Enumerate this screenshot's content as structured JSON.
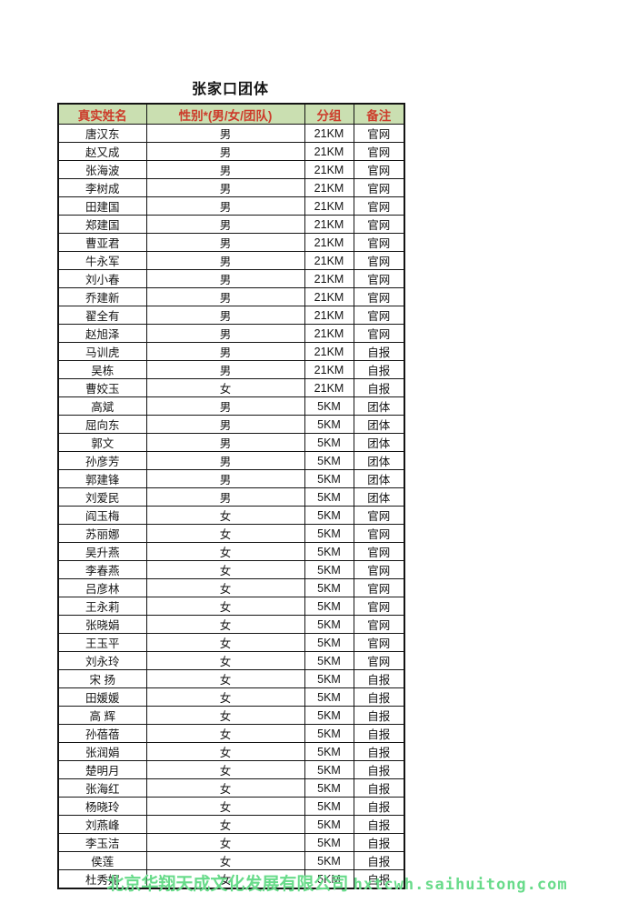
{
  "title": "张家口团体",
  "colors": {
    "header_bg": "#cadfb1",
    "header_text": "#cc3b2a",
    "footer_text": "#68db8a",
    "border": "#141414"
  },
  "table": {
    "columns": [
      "真实姓名",
      "性别*(男/女/团队)",
      "分组",
      "备注"
    ],
    "rows": [
      [
        "唐汉东",
        "男",
        "21KM",
        "官网"
      ],
      [
        "赵又成",
        "男",
        "21KM",
        "官网"
      ],
      [
        "张海波",
        "男",
        "21KM",
        "官网"
      ],
      [
        "李树成",
        "男",
        "21KM",
        "官网"
      ],
      [
        "田建国",
        "男",
        "21KM",
        "官网"
      ],
      [
        "郑建国",
        "男",
        "21KM",
        "官网"
      ],
      [
        "曹亚君",
        "男",
        "21KM",
        "官网"
      ],
      [
        "牛永军",
        "男",
        "21KM",
        "官网"
      ],
      [
        "刘小春",
        "男",
        "21KM",
        "官网"
      ],
      [
        "乔建新",
        "男",
        "21KM",
        "官网"
      ],
      [
        "翟全有",
        "男",
        "21KM",
        "官网"
      ],
      [
        "赵旭泽",
        "男",
        "21KM",
        "官网"
      ],
      [
        "马训虎",
        "男",
        "21KM",
        "自报"
      ],
      [
        "吴栋",
        "男",
        "21KM",
        "自报"
      ],
      [
        "曹姣玉",
        "女",
        "21KM",
        "自报"
      ],
      [
        "高斌",
        "男",
        "5KM",
        "团体"
      ],
      [
        "屈向东",
        "男",
        "5KM",
        "团体"
      ],
      [
        "郭文",
        "男",
        "5KM",
        "团体"
      ],
      [
        "孙彦芳",
        "男",
        "5KM",
        "团体"
      ],
      [
        "郭建锋",
        "男",
        "5KM",
        "团体"
      ],
      [
        "刘爱民",
        "男",
        "5KM",
        "团体"
      ],
      [
        "阎玉梅",
        "女",
        "5KM",
        "官网"
      ],
      [
        "苏丽娜",
        "女",
        "5KM",
        "官网"
      ],
      [
        "吴升燕",
        "女",
        "5KM",
        "官网"
      ],
      [
        "李春燕",
        "女",
        "5KM",
        "官网"
      ],
      [
        "吕彦林",
        "女",
        "5KM",
        "官网"
      ],
      [
        "王永莉",
        "女",
        "5KM",
        "官网"
      ],
      [
        "张晓娟",
        "女",
        "5KM",
        "官网"
      ],
      [
        "王玉平",
        "女",
        "5KM",
        "官网"
      ],
      [
        "刘永玲",
        "女",
        "5KM",
        "官网"
      ],
      [
        "宋 扬",
        "女",
        "5KM",
        "自报"
      ],
      [
        "田媛媛",
        "女",
        "5KM",
        "自报"
      ],
      [
        "高 辉",
        "女",
        "5KM",
        "自报"
      ],
      [
        "孙蓓蓓",
        "女",
        "5KM",
        "自报"
      ],
      [
        "张润娟",
        "女",
        "5KM",
        "自报"
      ],
      [
        "楚明月",
        "女",
        "5KM",
        "自报"
      ],
      [
        "张海红",
        "女",
        "5KM",
        "自报"
      ],
      [
        "杨晓玲",
        "女",
        "5KM",
        "自报"
      ],
      [
        "刘燕峰",
        "女",
        "5KM",
        "自报"
      ],
      [
        "李玉洁",
        "女",
        "5KM",
        "自报"
      ],
      [
        "侯莲",
        "女",
        "5KM",
        "自报"
      ],
      [
        "杜秀妮",
        "女",
        "5KM",
        "自报"
      ]
    ]
  },
  "footer": {
    "company": "北京华翔天成文化发展有限公司",
    "website": "hxtcwh.saihuitong.com"
  }
}
